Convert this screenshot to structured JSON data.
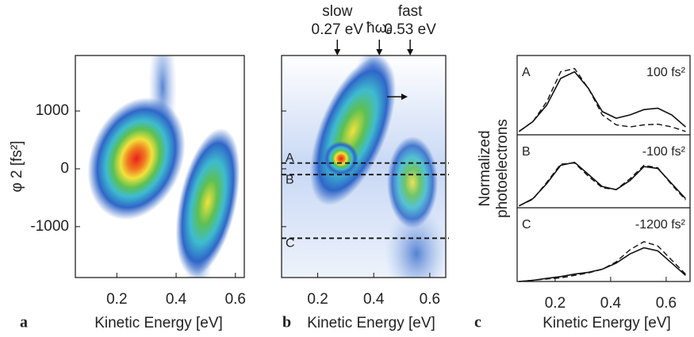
{
  "panels": [
    {
      "label": "a",
      "xlabel": "Kinetic Energy [eV]",
      "ylabel": "φ 2 [fs²]",
      "xlim": [
        0.06,
        0.63
      ],
      "xticks": [
        0.2,
        0.4,
        0.6
      ],
      "ylim": [
        -1880,
        1960
      ],
      "yticks": [
        1000,
        0,
        -1000
      ]
    },
    {
      "label": "b",
      "xlabel": "Kinetic Energy [eV]",
      "xlim": [
        0.071,
        0.657
      ],
      "xticks": [
        0.2,
        0.4,
        0.6
      ],
      "ylim": [
        -1880,
        1960
      ],
      "yticks": [
        1000,
        0,
        -1000
      ],
      "annotations": [
        {
          "lines": [
            "slow",
            "0.27 eV"
          ],
          "x": 0.27
        },
        {
          "lines": [
            "ħωₑ"
          ],
          "x": 0.42
        },
        {
          "lines": [
            "fast",
            "0.53 eV"
          ],
          "x": 0.53
        }
      ],
      "cuts": [
        {
          "label": "A",
          "value": 100
        },
        {
          "label": "B",
          "value": -100
        },
        {
          "label": "C",
          "value": -1200
        }
      ]
    },
    {
      "label": "c",
      "xlabel": "Kinetic Energy [eV]",
      "ylabel": [
        "Normalized",
        "photoelectrons"
      ],
      "xlim": [
        0.063,
        0.686
      ],
      "xticks": [
        0.2,
        0.4,
        0.6
      ],
      "ylim": [
        0,
        1.1
      ],
      "x": [
        0.07,
        0.12,
        0.17,
        0.22,
        0.27,
        0.32,
        0.37,
        0.42,
        0.47,
        0.52,
        0.57,
        0.62,
        0.67
      ],
      "traces": [
        {
          "label": "A",
          "phase": "100 fs²",
          "solid": [
            0.05,
            0.2,
            0.45,
            0.85,
            0.95,
            0.7,
            0.35,
            0.25,
            0.3,
            0.38,
            0.4,
            0.3,
            0.12
          ],
          "dashed": [
            0.05,
            0.2,
            0.5,
            0.95,
            1.0,
            0.7,
            0.3,
            0.15,
            0.12,
            0.15,
            0.16,
            0.12,
            0.05
          ]
        },
        {
          "label": "B",
          "phase": "-100 fs²",
          "solid": [
            0.03,
            0.15,
            0.4,
            0.7,
            0.75,
            0.55,
            0.35,
            0.3,
            0.45,
            0.68,
            0.65,
            0.4,
            0.15
          ],
          "dashed": [
            0.03,
            0.14,
            0.42,
            0.72,
            0.74,
            0.52,
            0.33,
            0.3,
            0.48,
            0.7,
            0.66,
            0.38,
            0.13
          ]
        },
        {
          "label": "C",
          "phase": "-1200 fs²",
          "solid": [
            0.0,
            0.02,
            0.05,
            0.08,
            0.12,
            0.15,
            0.2,
            0.3,
            0.45,
            0.55,
            0.5,
            0.3,
            0.1
          ],
          "dashed": [
            0.0,
            0.02,
            0.04,
            0.06,
            0.1,
            0.14,
            0.2,
            0.32,
            0.52,
            0.65,
            0.58,
            0.35,
            0.12
          ]
        }
      ]
    }
  ]
}
